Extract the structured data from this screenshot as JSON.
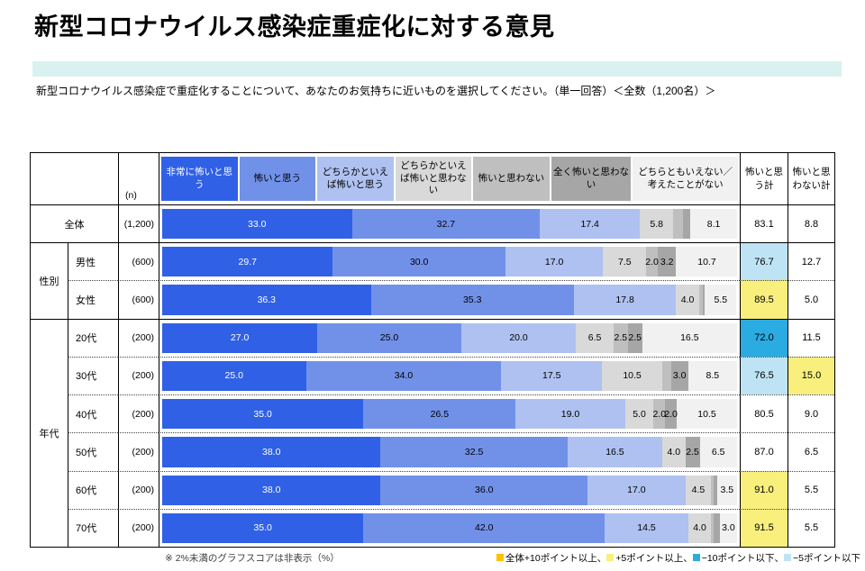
{
  "title": "新型コロナウイルス感染症重症化に対する意見",
  "subtitle": "新型コロナウイルス感染症で重症化することについて、あなたのお気持ちに近いものを選択してください。（単一回答）＜全数（1,200名）＞",
  "band_color": "#d9f1f1",
  "footnote": "※ 2%未満のグラフスコアは非表示（%）",
  "legend": [
    {
      "label": "全体+10ポイント以上、",
      "color": "#ffc000"
    },
    {
      "label": "+5ポイント以上、",
      "color": "#f8ef7d"
    },
    {
      "label": "−10ポイント以下、",
      "color": "#2aabe2"
    },
    {
      "label": "−5ポイント以下",
      "color": "#bee3f4"
    }
  ],
  "chart_data": {
    "type": "bar",
    "stacked": true,
    "unit": "%",
    "n_label": "(n)",
    "group_labels": {
      "sex": "性別",
      "age": "年代"
    },
    "totals_columns": [
      "怖いと思う計",
      "怖いと思わない計"
    ],
    "segments": [
      {
        "label": "非常に怖いと思う",
        "color": "#3060e6",
        "text_color": "#ffffff",
        "header_flex": 1
      },
      {
        "label": "怖いと思う",
        "color": "#7191e9",
        "text_color": "#000000",
        "header_flex": 1
      },
      {
        "label": "どちらかといえば怖いと思う",
        "color": "#afc1f0",
        "text_color": "#000000",
        "header_flex": 1
      },
      {
        "label": "どちらかといえば怖いと思わない",
        "color": "#d9d9d9",
        "text_color": "#000000",
        "header_flex": 1
      },
      {
        "label": "怖いと思わない",
        "color": "#bfbfbf",
        "text_color": "#000000",
        "header_flex": 1
      },
      {
        "label": "全く怖いと思わない",
        "color": "#a6a6a6",
        "text_color": "#000000",
        "header_flex": 1.05
      },
      {
        "label": "どちらともいえない／考えたことがない",
        "color": "#f1f1f1",
        "text_color": "#000000",
        "header_flex": 1.4
      }
    ],
    "rows": [
      {
        "group": "全体",
        "label": "全体",
        "n": "(1,200)",
        "values": [
          33.0,
          32.7,
          17.4,
          5.8,
          1.7,
          1.3,
          8.1
        ],
        "value_labels": [
          "33.0",
          "32.7",
          "17.4",
          "5.8",
          "",
          "",
          "8.1"
        ],
        "totals": [
          {
            "value": "83.1",
            "bg": "#ffffff"
          },
          {
            "value": "8.8",
            "bg": "#ffffff"
          }
        ]
      },
      {
        "group": "性別",
        "label": "男性",
        "n": "(600)",
        "values": [
          29.7,
          30.0,
          17.0,
          7.5,
          2.0,
          3.2,
          10.7
        ],
        "value_labels": [
          "29.7",
          "30.0",
          "17.0",
          "7.5",
          "2.0",
          "3.2",
          "10.7"
        ],
        "totals": [
          {
            "value": "76.7",
            "bg": "#bee3f4"
          },
          {
            "value": "12.7",
            "bg": "#ffffff"
          }
        ]
      },
      {
        "group": "性別",
        "label": "女性",
        "n": "(600)",
        "values": [
          36.3,
          35.3,
          17.8,
          4.0,
          0.7,
          0.3,
          5.5
        ],
        "value_labels": [
          "36.3",
          "35.3",
          "17.8",
          "4.0",
          "",
          "",
          "5.5"
        ],
        "totals": [
          {
            "value": "89.5",
            "bg": "#f8ef7d"
          },
          {
            "value": "5.0",
            "bg": "#ffffff"
          }
        ]
      },
      {
        "group": "年代",
        "label": "20代",
        "n": "(200)",
        "values": [
          27.0,
          25.0,
          20.0,
          6.5,
          2.5,
          2.5,
          16.5
        ],
        "value_labels": [
          "27.0",
          "25.0",
          "20.0",
          "6.5",
          "2.5",
          "2.5",
          "16.5"
        ],
        "totals": [
          {
            "value": "72.0",
            "bg": "#2aabe2"
          },
          {
            "value": "11.5",
            "bg": "#ffffff"
          }
        ]
      },
      {
        "group": "年代",
        "label": "30代",
        "n": "(200)",
        "values": [
          25.0,
          34.0,
          17.5,
          10.5,
          1.5,
          3.0,
          8.5
        ],
        "value_labels": [
          "25.0",
          "34.0",
          "17.5",
          "10.5",
          "",
          "3.0",
          "8.5"
        ],
        "totals": [
          {
            "value": "76.5",
            "bg": "#bee3f4"
          },
          {
            "value": "15.0",
            "bg": "#f8ef7d"
          }
        ]
      },
      {
        "group": "年代",
        "label": "40代",
        "n": "(200)",
        "values": [
          35.0,
          26.5,
          19.0,
          5.0,
          2.0,
          2.0,
          10.5
        ],
        "value_labels": [
          "35.0",
          "26.5",
          "19.0",
          "5.0",
          "2.0",
          "2.0",
          "10.5"
        ],
        "totals": [
          {
            "value": "80.5",
            "bg": "#ffffff"
          },
          {
            "value": "9.0",
            "bg": "#ffffff"
          }
        ]
      },
      {
        "group": "年代",
        "label": "50代",
        "n": "(200)",
        "values": [
          38.0,
          32.5,
          16.5,
          4.0,
          0.0,
          2.5,
          6.5
        ],
        "value_labels": [
          "38.0",
          "32.5",
          "16.5",
          "4.0",
          "",
          "2.5",
          "6.5"
        ],
        "totals": [
          {
            "value": "87.0",
            "bg": "#ffffff"
          },
          {
            "value": "6.5",
            "bg": "#ffffff"
          }
        ]
      },
      {
        "group": "年代",
        "label": "60代",
        "n": "(200)",
        "values": [
          38.0,
          36.0,
          17.0,
          4.5,
          0.5,
          0.5,
          3.5
        ],
        "value_labels": [
          "38.0",
          "36.0",
          "17.0",
          "4.5",
          "",
          "",
          "3.5"
        ],
        "totals": [
          {
            "value": "91.0",
            "bg": "#f8ef7d"
          },
          {
            "value": "5.5",
            "bg": "#ffffff"
          }
        ]
      },
      {
        "group": "年代",
        "label": "70代",
        "n": "(200)",
        "values": [
          35.0,
          42.0,
          14.5,
          4.0,
          0.5,
          1.0,
          3.0
        ],
        "value_labels": [
          "35.0",
          "42.0",
          "14.5",
          "4.0",
          "",
          "",
          "3.0"
        ],
        "totals": [
          {
            "value": "91.5",
            "bg": "#f8ef7d"
          },
          {
            "value": "5.5",
            "bg": "#ffffff"
          }
        ]
      }
    ]
  }
}
